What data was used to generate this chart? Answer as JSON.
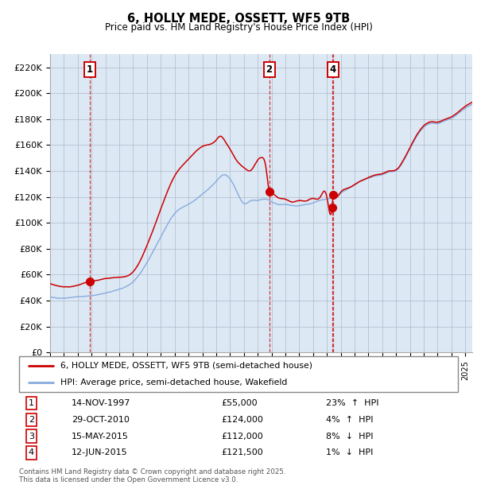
{
  "title": "6, HOLLY MEDE, OSSETT, WF5 9TB",
  "subtitle": "Price paid vs. HM Land Registry's House Price Index (HPI)",
  "background_color": "#dce9f5",
  "plot_bg_color": "#dce9f5",
  "ylabel_ticks": [
    "£0",
    "£20K",
    "£40K",
    "£60K",
    "£80K",
    "£100K",
    "£120K",
    "£140K",
    "£160K",
    "£180K",
    "£200K",
    "£220K"
  ],
  "ytick_values": [
    0,
    20000,
    40000,
    60000,
    80000,
    100000,
    120000,
    140000,
    160000,
    180000,
    200000,
    220000
  ],
  "ylim": [
    0,
    230000
  ],
  "xlim_start": 1995.0,
  "xlim_end": 2025.5,
  "transactions": [
    {
      "num": 1,
      "date": "14-NOV-1997",
      "date_float": 1997.87,
      "price": 55000,
      "pct": "23%",
      "dir": "↑"
    },
    {
      "num": 2,
      "date": "29-OCT-2010",
      "date_float": 2010.83,
      "price": 124000,
      "pct": "4%",
      "dir": "↑"
    },
    {
      "num": 3,
      "date": "15-MAY-2015",
      "date_float": 2015.37,
      "price": 112000,
      "pct": "8%",
      "dir": "↓"
    },
    {
      "num": 4,
      "date": "12-JUN-2015",
      "date_float": 2015.45,
      "price": 121500,
      "pct": "1%",
      "dir": "↓"
    }
  ],
  "chart_nums_on_plot": [
    1,
    2,
    4
  ],
  "legend_line1": "6, HOLLY MEDE, OSSETT, WF5 9TB (semi-detached house)",
  "legend_line2": "HPI: Average price, semi-detached house, Wakefield",
  "footer": "Contains HM Land Registry data © Crown copyright and database right 2025.\nThis data is licensed under the Open Government Licence v3.0.",
  "line_color_price": "#cc0000",
  "line_color_hpi": "#88aadd",
  "marker_color": "#cc0000",
  "transaction_line_color": "#cc0000",
  "box_color": "#cc0000",
  "hpi_waypoints": [
    [
      1995.0,
      43000
    ],
    [
      1996.0,
      42000
    ],
    [
      1997.0,
      43000
    ],
    [
      1998.0,
      44000
    ],
    [
      1999.0,
      46000
    ],
    [
      2000.0,
      49000
    ],
    [
      2001.0,
      55000
    ],
    [
      2002.0,
      70000
    ],
    [
      2003.0,
      90000
    ],
    [
      2004.0,
      108000
    ],
    [
      2005.0,
      115000
    ],
    [
      2006.0,
      123000
    ],
    [
      2007.0,
      133000
    ],
    [
      2007.5,
      138000
    ],
    [
      2008.0,
      135000
    ],
    [
      2008.5,
      125000
    ],
    [
      2009.0,
      116000
    ],
    [
      2009.5,
      118000
    ],
    [
      2010.0,
      118000
    ],
    [
      2010.5,
      119000
    ],
    [
      2011.0,
      117000
    ],
    [
      2011.5,
      115000
    ],
    [
      2012.0,
      115000
    ],
    [
      2012.5,
      114000
    ],
    [
      2013.0,
      114000
    ],
    [
      2013.5,
      115000
    ],
    [
      2014.0,
      116000
    ],
    [
      2014.5,
      118000
    ],
    [
      2015.0,
      119000
    ],
    [
      2015.5,
      121000
    ],
    [
      2016.0,
      124000
    ],
    [
      2016.5,
      127000
    ],
    [
      2017.0,
      130000
    ],
    [
      2017.5,
      133000
    ],
    [
      2018.0,
      135000
    ],
    [
      2018.5,
      137000
    ],
    [
      2019.0,
      138000
    ],
    [
      2019.5,
      140000
    ],
    [
      2020.0,
      141000
    ],
    [
      2020.5,
      148000
    ],
    [
      2021.0,
      158000
    ],
    [
      2021.5,
      168000
    ],
    [
      2022.0,
      175000
    ],
    [
      2022.5,
      178000
    ],
    [
      2023.0,
      178000
    ],
    [
      2023.5,
      180000
    ],
    [
      2024.0,
      182000
    ],
    [
      2024.5,
      186000
    ],
    [
      2025.0,
      190000
    ],
    [
      2025.5,
      193000
    ]
  ],
  "price_waypoints": [
    [
      1995.0,
      53000
    ],
    [
      1996.0,
      51000
    ],
    [
      1997.0,
      52000
    ],
    [
      1997.87,
      55000
    ],
    [
      1998.5,
      56000
    ],
    [
      1999.0,
      57000
    ],
    [
      2000.0,
      58000
    ],
    [
      2001.0,
      62000
    ],
    [
      2002.0,
      82000
    ],
    [
      2003.0,
      110000
    ],
    [
      2004.0,
      135000
    ],
    [
      2005.0,
      148000
    ],
    [
      2006.0,
      158000
    ],
    [
      2007.0,
      163000
    ],
    [
      2007.3,
      166000
    ],
    [
      2007.7,
      161000
    ],
    [
      2008.0,
      156000
    ],
    [
      2008.5,
      147000
    ],
    [
      2009.0,
      142000
    ],
    [
      2009.5,
      140000
    ],
    [
      2010.0,
      148000
    ],
    [
      2010.3,
      150000
    ],
    [
      2010.6,
      142000
    ],
    [
      2010.83,
      124000
    ],
    [
      2011.0,
      122000
    ],
    [
      2011.5,
      119000
    ],
    [
      2012.0,
      118000
    ],
    [
      2012.5,
      116000
    ],
    [
      2013.0,
      117000
    ],
    [
      2013.5,
      117000
    ],
    [
      2014.0,
      119000
    ],
    [
      2014.5,
      120000
    ],
    [
      2015.0,
      120000
    ],
    [
      2015.37,
      112000
    ],
    [
      2015.45,
      121500
    ],
    [
      2015.6,
      122000
    ],
    [
      2016.0,
      124000
    ],
    [
      2016.5,
      127000
    ],
    [
      2017.0,
      130000
    ],
    [
      2017.5,
      133000
    ],
    [
      2018.0,
      135000
    ],
    [
      2018.5,
      137000
    ],
    [
      2019.0,
      138000
    ],
    [
      2019.5,
      140000
    ],
    [
      2020.0,
      141000
    ],
    [
      2020.5,
      148000
    ],
    [
      2021.0,
      158000
    ],
    [
      2021.5,
      168000
    ],
    [
      2022.0,
      175000
    ],
    [
      2022.5,
      178000
    ],
    [
      2023.0,
      178000
    ],
    [
      2023.5,
      180000
    ],
    [
      2024.0,
      182000
    ],
    [
      2024.5,
      186000
    ],
    [
      2025.0,
      190000
    ],
    [
      2025.5,
      193000
    ]
  ]
}
